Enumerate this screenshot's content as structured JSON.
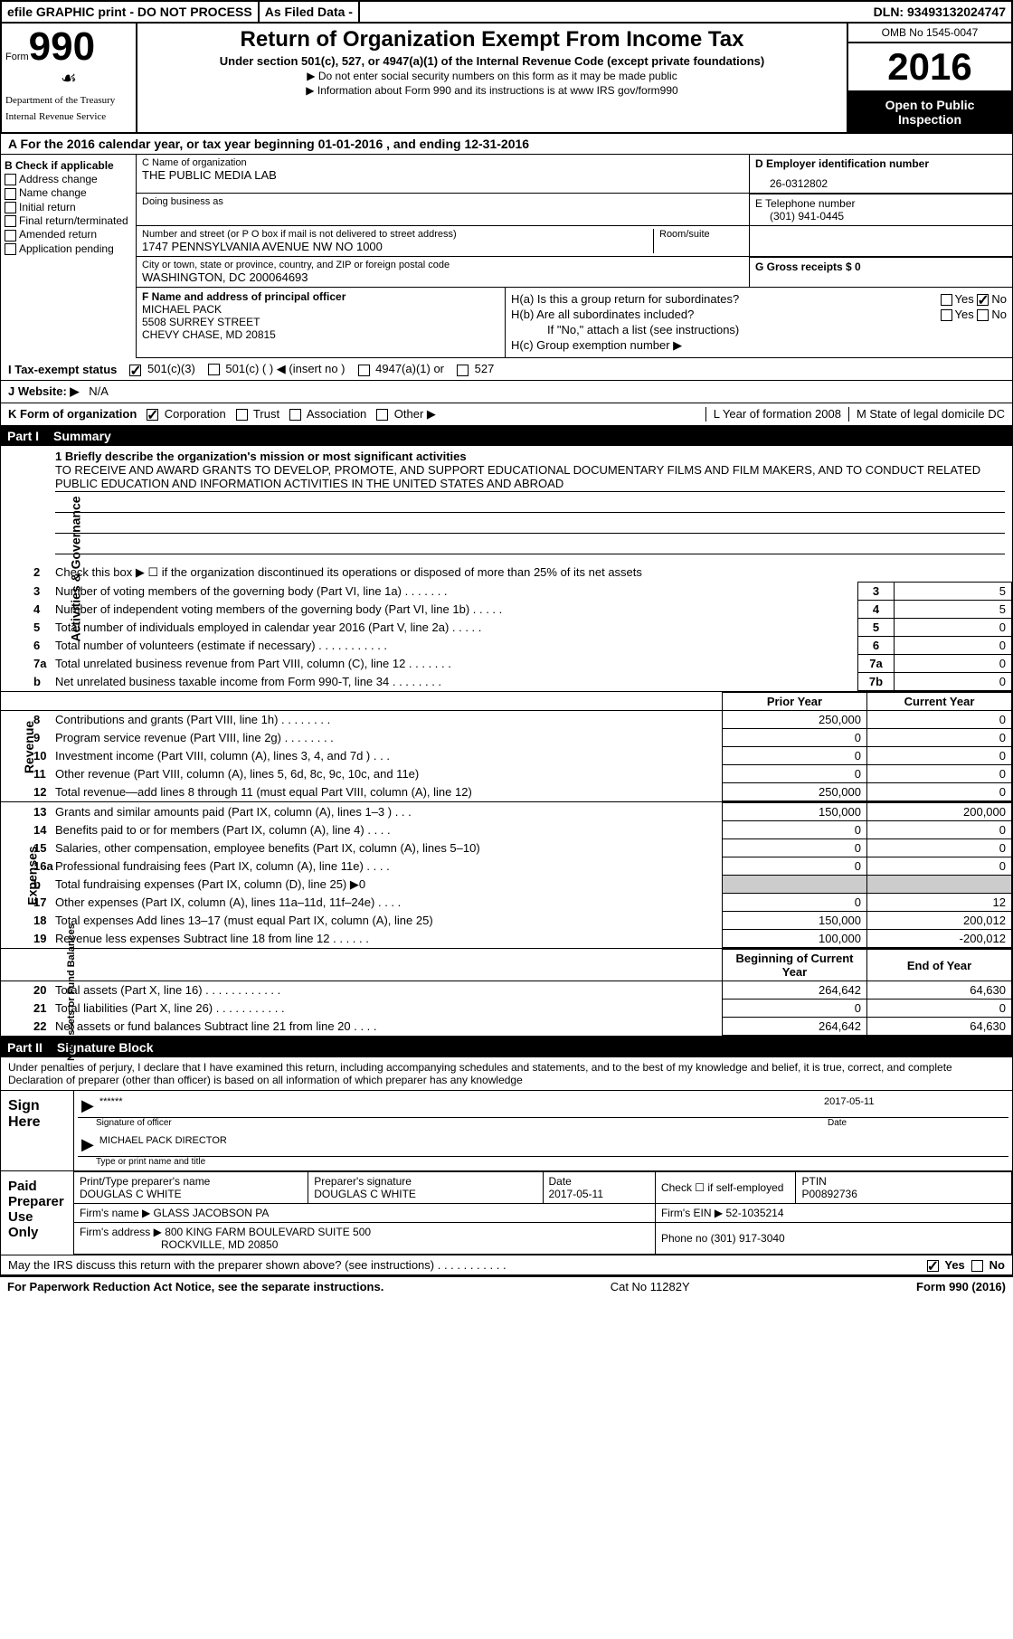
{
  "top": {
    "efile": "efile GRAPHIC print - DO NOT PROCESS",
    "asfiled": "As Filed Data -",
    "dln": "DLN: 93493132024747"
  },
  "head": {
    "form": "Form",
    "num": "990",
    "dept1": "Department of the Treasury",
    "dept2": "Internal Revenue Service",
    "title": "Return of Organization Exempt From Income Tax",
    "sub": "Under section 501(c), 527, or 4947(a)(1) of the Internal Revenue Code (except private foundations)",
    "note1": "▶ Do not enter social security numbers on this form as it may be made public",
    "note2": "▶ Information about Form 990 and its instructions is at www IRS gov/form990",
    "omb": "OMB No  1545-0047",
    "year": "2016",
    "open": "Open to Public Inspection"
  },
  "rowA": "A   For the 2016 calendar year, or tax year beginning 01-01-2016   , and ending 12-31-2016",
  "B": {
    "label": "B Check if applicable",
    "items": [
      "Address change",
      "Name change",
      "Initial return",
      "Final return/terminated",
      "Amended return",
      "Application pending"
    ]
  },
  "C": {
    "nameLbl": "C Name of organization",
    "name": "THE PUBLIC MEDIA LAB",
    "dbaLbl": "Doing business as",
    "streetLbl": "Number and street (or P O  box if mail is not delivered to street address)",
    "roomLbl": "Room/suite",
    "street": "1747 PENNSYLVANIA AVENUE NW NO 1000",
    "cityLbl": "City or town, state or province, country, and ZIP or foreign postal code",
    "city": "WASHINGTON, DC  200064693"
  },
  "D": {
    "lbl": "D Employer identification number",
    "val": "26-0312802"
  },
  "E": {
    "lbl": "E Telephone number",
    "val": "(301) 941-0445"
  },
  "G": {
    "lbl": "G Gross receipts $ 0"
  },
  "F": {
    "lbl": "F  Name and address of principal officer",
    "name": "MICHAEL PACK",
    "addr1": "5508 SURREY STREET",
    "addr2": "CHEVY CHASE, MD  20815"
  },
  "H": {
    "a": "H(a)  Is this a group return for subordinates?",
    "b": "H(b)  Are all subordinates included?",
    "bnote": "If \"No,\" attach a list  (see instructions)",
    "c": "H(c)  Group exemption number ▶"
  },
  "I": {
    "lbl": "I   Tax-exempt status",
    "o1": "501(c)(3)",
    "o2": "501(c) (  ) ◀ (insert no )",
    "o3": "4947(a)(1) or",
    "o4": "527"
  },
  "J": {
    "lbl": "J   Website: ▶",
    "val": "N/A"
  },
  "K": {
    "lbl": "K Form of organization",
    "o1": "Corporation",
    "o2": "Trust",
    "o3": "Association",
    "o4": "Other ▶"
  },
  "L": {
    "lbl": "L Year of formation  2008"
  },
  "M": {
    "lbl": "M State of legal domicile  DC"
  },
  "part1": {
    "num": "Part I",
    "title": "Summary"
  },
  "mission": {
    "lbl": "1  Briefly describe the organization's mission or most significant activities",
    "text": "TO RECEIVE AND AWARD GRANTS TO DEVELOP, PROMOTE, AND SUPPORT EDUCATIONAL DOCUMENTARY FILMS AND FILM MAKERS, AND TO CONDUCT RELATED PUBLIC EDUCATION AND INFORMATION ACTIVITIES IN THE UNITED STATES AND ABROAD"
  },
  "line2": "Check this box ▶ ☐ if the organization discontinued its operations or disposed of more than 25% of its net assets",
  "boxlines": [
    {
      "n": "3",
      "d": "Number of voting members of the governing body (Part VI, line 1a)  .  .  .  .  .  .  .",
      "b": "3",
      "v": "5"
    },
    {
      "n": "4",
      "d": "Number of independent voting members of the governing body (Part VI, line 1b)  .  .  .  .  .",
      "b": "4",
      "v": "5"
    },
    {
      "n": "5",
      "d": "Total number of individuals employed in calendar year 2016 (Part V, line 2a)  .  .  .  .  .",
      "b": "5",
      "v": "0"
    },
    {
      "n": "6",
      "d": "Total number of volunteers (estimate if necessary)  .  .  .  .  .  .  .  .  .  .  .",
      "b": "6",
      "v": "0"
    },
    {
      "n": "7a",
      "d": "Total unrelated business revenue from Part VIII, column (C), line 12  .  .  .  .  .  .  .",
      "b": "7a",
      "v": "0"
    },
    {
      "n": "b",
      "d": "Net unrelated business taxable income from Form 990-T, line 34  .  .  .  .  .  .  .  .",
      "b": "7b",
      "v": "0"
    }
  ],
  "revHead": {
    "p": "Prior Year",
    "c": "Current Year"
  },
  "revenue": [
    {
      "n": "8",
      "d": "Contributions and grants (Part VIII, line 1h)  .  .  .  .  .  .  .  .",
      "p": "250,000",
      "c": "0"
    },
    {
      "n": "9",
      "d": "Program service revenue (Part VIII, line 2g)  .  .  .  .  .  .  .  .",
      "p": "0",
      "c": "0"
    },
    {
      "n": "10",
      "d": "Investment income (Part VIII, column (A), lines 3, 4, and 7d )  .  .  .",
      "p": "0",
      "c": "0"
    },
    {
      "n": "11",
      "d": "Other revenue (Part VIII, column (A), lines 5, 6d, 8c, 9c, 10c, and 11e)",
      "p": "0",
      "c": "0"
    },
    {
      "n": "12",
      "d": "Total revenue—add lines 8 through 11 (must equal Part VIII, column (A), line 12)",
      "p": "250,000",
      "c": "0"
    }
  ],
  "expenses": [
    {
      "n": "13",
      "d": "Grants and similar amounts paid (Part IX, column (A), lines 1–3 )  .  .  .",
      "p": "150,000",
      "c": "200,000"
    },
    {
      "n": "14",
      "d": "Benefits paid to or for members (Part IX, column (A), line 4)  .  .  .  .",
      "p": "0",
      "c": "0"
    },
    {
      "n": "15",
      "d": "Salaries, other compensation, employee benefits (Part IX, column (A), lines 5–10)",
      "p": "0",
      "c": "0"
    },
    {
      "n": "16a",
      "d": "Professional fundraising fees (Part IX, column (A), line 11e)  .  .  .  .",
      "p": "0",
      "c": "0"
    },
    {
      "n": "b",
      "d": "Total fundraising expenses (Part IX, column (D), line 25) ▶0",
      "p": "",
      "c": ""
    },
    {
      "n": "17",
      "d": "Other expenses (Part IX, column (A), lines 11a–11d, 11f–24e)  .  .  .  .",
      "p": "0",
      "c": "12"
    },
    {
      "n": "18",
      "d": "Total expenses  Add lines 13–17 (must equal Part IX, column (A), line 25)",
      "p": "150,000",
      "c": "200,012"
    },
    {
      "n": "19",
      "d": "Revenue less expenses  Subtract line 18 from line 12  .  .  .  .  .  .",
      "p": "100,000",
      "c": "-200,012"
    }
  ],
  "netHead": {
    "p": "Beginning of Current Year",
    "c": "End of Year"
  },
  "netassets": [
    {
      "n": "20",
      "d": "Total assets (Part X, line 16)  .  .  .  .  .  .  .  .  .  .  .  .",
      "p": "264,642",
      "c": "64,630"
    },
    {
      "n": "21",
      "d": "Total liabilities (Part X, line 26)  .  .  .  .  .  .  .  .  .  .  .",
      "p": "0",
      "c": "0"
    },
    {
      "n": "22",
      "d": "Net assets or fund balances  Subtract line 21 from line 20  .  .  .  .",
      "p": "264,642",
      "c": "64,630"
    }
  ],
  "part2": {
    "num": "Part II",
    "title": "Signature Block"
  },
  "sigtext": "Under penalties of perjury, I declare that I have examined this return, including accompanying schedules and statements, and to the best of my knowledge and belief, it is true, correct, and complete  Declaration of preparer (other than officer) is based on all information of which preparer has any knowledge",
  "sign": {
    "lbl": "Sign Here",
    "stars": "******",
    "sigof": "Signature of officer",
    "date": "2017-05-11",
    "dateLbl": "Date",
    "name": "MICHAEL PACK  DIRECTOR",
    "nameLbl": "Type or print name and title"
  },
  "prep": {
    "lbl": "Paid Preparer Use Only",
    "h1": "Print/Type preparer's name",
    "v1": "DOUGLAS C WHITE",
    "h2": "Preparer's signature",
    "v2": "DOUGLAS C WHITE",
    "h3": "Date",
    "v3": "2017-05-11",
    "h4": "Check ☐ if self-employed",
    "h5": "PTIN",
    "v5": "P00892736",
    "firm": "Firm's name    ▶ GLASS JACOBSON PA",
    "ein": "Firm's EIN ▶ 52-1035214",
    "addr": "Firm's address ▶ 800 KING FARM BOULEVARD SUITE 500",
    "addr2": "ROCKVILLE, MD  20850",
    "phone": "Phone no  (301) 917-3040"
  },
  "discuss": "May the IRS discuss this return with the preparer shown above? (see instructions)  .  .  .  .  .  .  .  .  .  .  .",
  "footer": {
    "l": "For Paperwork Reduction Act Notice, see the separate instructions.",
    "c": "Cat No  11282Y",
    "r": "Form 990 (2016)"
  },
  "labels": {
    "ag": "Activities & Governance",
    "rev": "Revenue",
    "exp": "Expenses",
    "net": "Net Assets or Fund Balances"
  }
}
